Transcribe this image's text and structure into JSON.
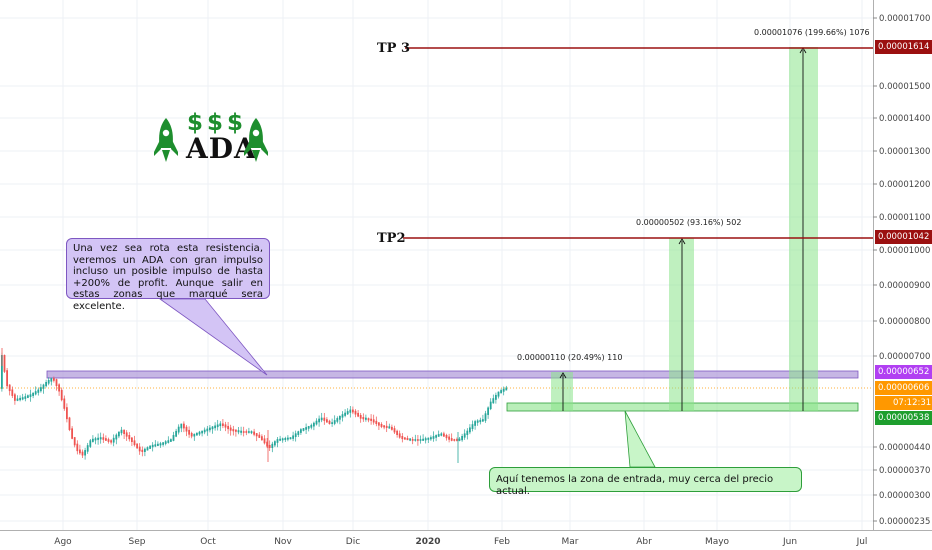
{
  "chart_data": {
    "type": "candlestick",
    "symbol": "ADA",
    "x_ticks": [
      "Ago",
      "Sep",
      "Oct",
      "Nov",
      "Dic",
      "2020",
      "Feb",
      "Mar",
      "Abr",
      "Mayo",
      "Jun",
      "Jul"
    ],
    "y_ticks": [
      "0.00001700",
      "0.00001500",
      "0.00001400",
      "0.00001300",
      "0.00001200",
      "0.00001100",
      "0.00001000",
      "0.00000900",
      "0.00000800",
      "0.00000700",
      "0.00000440",
      "0.00000370",
      "0.00000300",
      "0.00000235"
    ],
    "y_scale": "log",
    "price_tags": [
      {
        "label": "0.00001614",
        "color": "#9b1010"
      },
      {
        "label": "0.00001042",
        "color": "#9b1010"
      },
      {
        "label": "0.00000652",
        "color": "#b13ff2"
      },
      {
        "label": "0.00000606",
        "color": "#ff9800"
      },
      {
        "label": "07:12:31",
        "color": "#ff9800"
      },
      {
        "label": "0.00000538",
        "color": "#1e9e2e"
      }
    ],
    "levels": [
      {
        "name": "TP 3",
        "value": 1.614e-05
      },
      {
        "name": "TP2",
        "value": 1.042e-05
      },
      {
        "name": "Resistencia",
        "value": 6.52e-06
      },
      {
        "name": "Entrada",
        "value": 5.38e-06
      }
    ],
    "measurements": [
      {
        "label": "0.00000110 (20.49%) 110"
      },
      {
        "label": "0.00000502 (93.16%) 502"
      },
      {
        "label": "0.00001076 (199.66%) 1076"
      }
    ],
    "annotations": {
      "resistance_note": "Una vez sea rota esta resistencia, veremos un ADA con gran impulso incluso un posible impulso de hasta +200% de profit. Aunque salir en estas zonas que marqué sera excelente.",
      "entry_note": "Aquí tenemos la zona de entrada, muy cerca del precio actual."
    },
    "logo": {
      "dollars": "$$$",
      "text": "ADA"
    },
    "colors": {
      "up": "#26a69a",
      "down": "#ef5350",
      "tp_line": "#9b1010",
      "resistance": "#b39ddb",
      "entry": "#8be38b"
    }
  }
}
